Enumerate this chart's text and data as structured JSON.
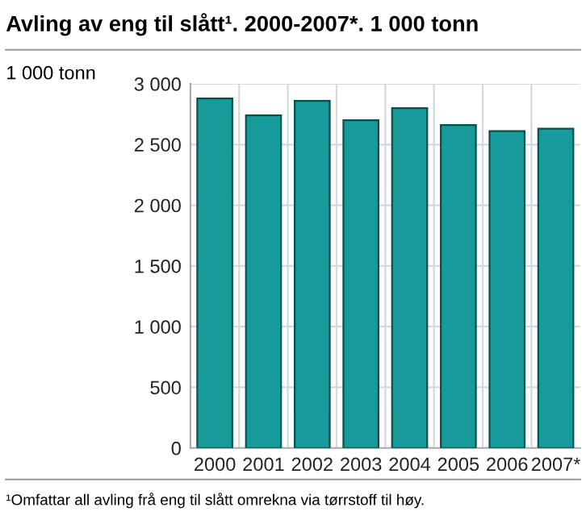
{
  "chart_data": {
    "type": "bar",
    "title": "Avling av eng til slått¹. 2000-2007*. 1 000 tonn",
    "ylabel": "1 000 tonn",
    "categories": [
      "2000",
      "2001",
      "2002",
      "2003",
      "2004",
      "2005",
      "2006",
      "2007*"
    ],
    "values": [
      2880,
      2740,
      2860,
      2700,
      2800,
      2660,
      2610,
      2630
    ],
    "color": "#169b9a",
    "ylim": [
      0,
      3000
    ],
    "yticks": [
      {
        "value": 0,
        "label": "0"
      },
      {
        "value": 500,
        "label": "500"
      },
      {
        "value": 1000,
        "label": "1 000"
      },
      {
        "value": 1500,
        "label": "1 500"
      },
      {
        "value": 2000,
        "label": "2 000"
      },
      {
        "value": 2500,
        "label": "2 500"
      },
      {
        "value": 3000,
        "label": "3 000"
      }
    ],
    "grid": true,
    "legend": false,
    "annotations": [
      "¹Omfattar all avling frå eng til slått omrekna via tørrstoff til høy."
    ]
  }
}
